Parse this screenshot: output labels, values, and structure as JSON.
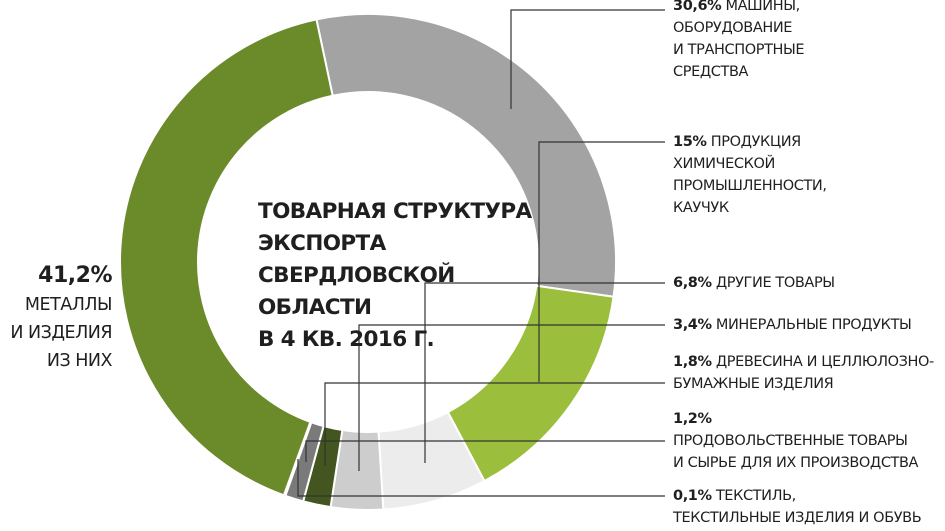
{
  "chart_data": {
    "type": "pie",
    "title_lines": [
      "ТОВАРНАЯ СТРУКТУРА",
      "ЭКСПОРТА",
      "СВЕРДЛОВСКОЙ",
      "ОБЛАСТИ",
      "В 4 КВ. 2016 Г."
    ],
    "slices": [
      {
        "value": 30.6,
        "value_label": "30,6%",
        "label_lines": [
          "МАШИНЫ,",
          "ОБОРУДОВАНИЕ",
          "И ТРАНСПОРТНЫЕ",
          "СРЕДСТВА"
        ],
        "color": "#a3a3a3"
      },
      {
        "value": 15,
        "value_label": "15%",
        "label_lines": [
          "ПРОДУКЦИЯ",
          "ХИМИЧЕСКОЙ",
          "ПРОМЫШЛЕННОСТИ,",
          "КАУЧУК"
        ],
        "color": "#9bbf3c"
      },
      {
        "value": 6.8,
        "value_label": "6,8%",
        "label_lines": [
          "ДРУГИЕ ТОВАРЫ"
        ],
        "color": "#ececec"
      },
      {
        "value": 3.4,
        "value_label": "3,4%",
        "label_lines": [
          "МИНЕРАЛЬНЫЕ ПРОДУКТЫ"
        ],
        "color": "#cdcdcd"
      },
      {
        "value": 1.8,
        "value_label": "1,8%",
        "label_lines": [
          "ДРЕВЕСИНА И ЦЕЛЛЮЛОЗНО-",
          "БУМАЖНЫЕ ИЗДЕЛИЯ"
        ],
        "color": "#43561f"
      },
      {
        "value": 1.2,
        "value_label": "1,2%",
        "label_lines": [
          "ПРОДОВОЛЬСТВЕННЫЕ ТОВАРЫ",
          "И СЫРЬЕ ДЛЯ ИХ ПРОИЗВОДСТВА"
        ],
        "color": "#7a7a7a"
      },
      {
        "value": 0.1,
        "value_label": "0,1%",
        "label_lines": [
          "ТЕКСТИЛЬ,",
          "ТЕКСТИЛЬНЫЕ ИЗДЕЛИЯ И ОБУВЬ"
        ],
        "color": "#e6e6e6"
      },
      {
        "value": 41.2,
        "value_label": "41,2%",
        "label_lines": [
          "МЕТАЛЛЫ",
          "И ИЗДЕЛИЯ",
          "ИЗ НИХ"
        ],
        "color": "#6b8a29"
      }
    ]
  }
}
